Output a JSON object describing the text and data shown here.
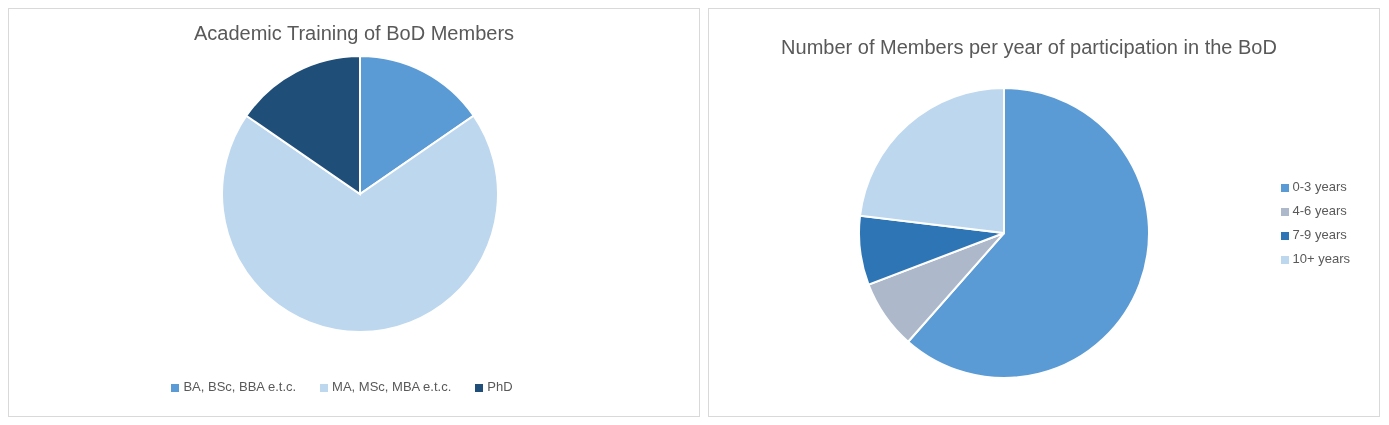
{
  "chart_data": [
    {
      "type": "pie",
      "title": "Academic Training of BoD Members",
      "categories": [
        "BA, BSc, BBA e.t.c.",
        "MA, MSc, MBA e.t.c.",
        "PhD"
      ],
      "values": [
        15.4,
        69.2,
        15.4
      ],
      "colors": [
        "#5b9bd5",
        "#bdd7ee",
        "#1f4e79"
      ],
      "legend": "bottom"
    },
    {
      "type": "pie",
      "title": "Number of Members per year of participation in the BoD",
      "categories": [
        "0-3 years",
        "4-6 years",
        "7-9 years",
        "10+ years"
      ],
      "values": [
        61.5,
        7.7,
        7.7,
        23.1
      ],
      "colors": [
        "#5b9bd5",
        "#adb9ca",
        "#2e75b6",
        "#bdd7ee"
      ],
      "legend": "right"
    }
  ]
}
